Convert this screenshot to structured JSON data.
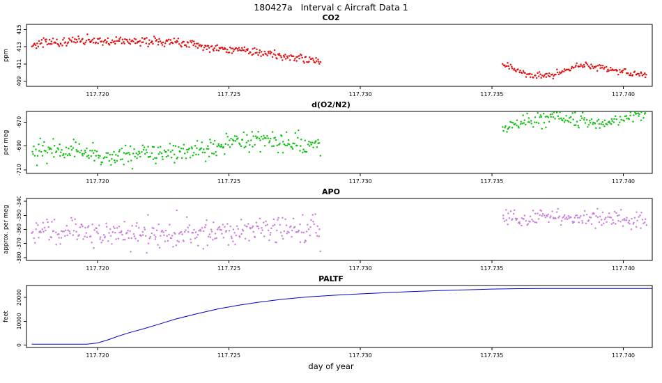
{
  "page": {
    "title": "180427a   Interval c Aircraft Data 1",
    "xlabel": "day of year"
  },
  "chart_data": [
    {
      "type": "scatter",
      "title": "CO2",
      "ylabel": "ppm",
      "color": "#dd0000",
      "xlim": [
        117.7173,
        117.7411
      ],
      "ylim": [
        408.4,
        415.6
      ],
      "xticks": [
        117.72,
        117.725,
        117.73,
        117.735,
        117.74
      ],
      "xtick_labels": [
        "117.720",
        "117.725",
        "117.730",
        "117.735",
        "117.740"
      ],
      "yticks": [
        409,
        411,
        413,
        415
      ],
      "ytick_labels": [
        "409",
        "411",
        "413",
        "415"
      ],
      "segments": [
        {
          "n": 320,
          "noise": 0.25,
          "seed": 101,
          "trend": [
            [
              117.7175,
              413.2
            ],
            [
              117.718,
              413.6
            ],
            [
              117.7185,
              413.5
            ],
            [
              117.719,
              413.7
            ],
            [
              117.7195,
              413.6
            ],
            [
              117.72,
              413.8
            ],
            [
              117.7205,
              413.6
            ],
            [
              117.721,
              413.8
            ],
            [
              117.7215,
              413.6
            ],
            [
              117.722,
              413.7
            ],
            [
              117.7225,
              413.5
            ],
            [
              117.723,
              413.6
            ],
            [
              117.7235,
              413.3
            ],
            [
              117.724,
              413.1
            ],
            [
              117.7245,
              412.9
            ],
            [
              117.725,
              412.7
            ],
            [
              117.7255,
              412.5
            ],
            [
              117.726,
              412.3
            ],
            [
              117.7265,
              412.2
            ],
            [
              117.727,
              412.0
            ],
            [
              117.7275,
              411.8
            ],
            [
              117.728,
              411.5
            ],
            [
              117.7285,
              411.3
            ]
          ]
        },
        {
          "n": 150,
          "noise": 0.2,
          "seed": 202,
          "trend": [
            [
              117.7354,
              411.0
            ],
            [
              117.7358,
              410.5
            ],
            [
              117.7362,
              410.0
            ],
            [
              117.7366,
              409.7
            ],
            [
              117.737,
              409.6
            ],
            [
              117.7374,
              409.8
            ],
            [
              117.7378,
              410.2
            ],
            [
              117.7382,
              410.7
            ],
            [
              117.7386,
              410.9
            ],
            [
              117.739,
              410.7
            ],
            [
              117.7394,
              410.4
            ],
            [
              117.7398,
              410.1
            ],
            [
              117.7402,
              410.0
            ],
            [
              117.7406,
              409.8
            ],
            [
              117.7409,
              409.6
            ]
          ]
        }
      ]
    },
    {
      "type": "scatter",
      "title": "d(O2/N2)",
      "ylabel": "per meg",
      "color": "#00bb00",
      "xlim": [
        117.7173,
        117.7411
      ],
      "ylim": [
        -713,
        -661
      ],
      "xticks": [
        117.72,
        117.725,
        117.73,
        117.735,
        117.74
      ],
      "xtick_labels": [
        "117.720",
        "117.725",
        "117.730",
        "117.735",
        "117.740"
      ],
      "yticks": [
        -710,
        -690,
        -670
      ],
      "ytick_labels": [
        "-710",
        "-690",
        "-670"
      ],
      "segments": [
        {
          "n": 320,
          "noise": 4.5,
          "seed": 303,
          "trend": [
            [
              117.7175,
              -693
            ],
            [
              117.718,
              -695
            ],
            [
              117.7185,
              -694
            ],
            [
              117.719,
              -692
            ],
            [
              117.7195,
              -695
            ],
            [
              117.72,
              -697
            ],
            [
              117.7205,
              -698
            ],
            [
              117.721,
              -699
            ],
            [
              117.7215,
              -698
            ],
            [
              117.722,
              -696
            ],
            [
              117.7225,
              -697
            ],
            [
              117.723,
              -695
            ],
            [
              117.7235,
              -693
            ],
            [
              117.724,
              -692
            ],
            [
              117.7245,
              -690
            ],
            [
              117.725,
              -689
            ],
            [
              117.7255,
              -687
            ],
            [
              117.726,
              -686
            ],
            [
              117.7265,
              -686
            ],
            [
              117.727,
              -687
            ],
            [
              117.7275,
              -686
            ],
            [
              117.728,
              -687
            ],
            [
              117.7285,
              -688
            ]
          ]
        },
        {
          "n": 150,
          "noise": 3,
          "seed": 404,
          "trend": [
            [
              117.7354,
              -675
            ],
            [
              117.7358,
              -672
            ],
            [
              117.7362,
              -670
            ],
            [
              117.7366,
              -668
            ],
            [
              117.737,
              -666
            ],
            [
              117.7374,
              -665
            ],
            [
              117.7378,
              -667
            ],
            [
              117.7382,
              -669
            ],
            [
              117.7386,
              -670
            ],
            [
              117.739,
              -671
            ],
            [
              117.7394,
              -670
            ],
            [
              117.7398,
              -668
            ],
            [
              117.7402,
              -666
            ],
            [
              117.7406,
              -664
            ],
            [
              117.7409,
              -663
            ]
          ]
        }
      ]
    },
    {
      "type": "scatter",
      "title": "APO",
      "ylabel": "approx. per meg",
      "color": "#c678d8",
      "xlim": [
        117.7173,
        117.7411
      ],
      "ylim": [
        -382,
        -338
      ],
      "xticks": [
        117.72,
        117.725,
        117.73,
        117.735,
        117.74
      ],
      "xtick_labels": [
        "117.720",
        "117.725",
        "117.730",
        "117.735",
        "117.740"
      ],
      "yticks": [
        -380,
        -370,
        -360,
        -350,
        -340
      ],
      "ytick_labels": [
        "-380",
        "-370",
        "-360",
        "-350",
        "-340"
      ],
      "segments": [
        {
          "n": 320,
          "noise": 5,
          "seed": 505,
          "trend": [
            [
              117.7175,
              -360
            ],
            [
              117.7185,
              -362
            ],
            [
              117.7195,
              -362
            ],
            [
              117.7205,
              -363
            ],
            [
              117.7215,
              -364
            ],
            [
              117.7225,
              -365
            ],
            [
              117.7235,
              -364
            ],
            [
              117.7245,
              -362
            ],
            [
              117.7255,
              -361
            ],
            [
              117.7265,
              -360
            ],
            [
              117.7275,
              -359
            ],
            [
              117.7285,
              -360
            ]
          ]
        },
        {
          "n": 150,
          "noise": 3.5,
          "seed": 606,
          "trend": [
            [
              117.7354,
              -353
            ],
            [
              117.7362,
              -351
            ],
            [
              117.737,
              -350
            ],
            [
              117.7378,
              -351
            ],
            [
              117.7386,
              -352
            ],
            [
              117.7394,
              -352
            ],
            [
              117.7402,
              -353
            ],
            [
              117.7409,
              -354
            ]
          ]
        }
      ]
    },
    {
      "type": "line",
      "title": "PALTF",
      "ylabel": "feet",
      "color": "#0000cc",
      "xlim": [
        117.7173,
        117.7411
      ],
      "ylim": [
        -1000,
        25000
      ],
      "xticks": [
        117.72,
        117.725,
        117.73,
        117.735,
        117.74
      ],
      "xtick_labels": [
        "117.720",
        "117.725",
        "117.730",
        "117.735",
        "117.740"
      ],
      "yticks": [
        0,
        10000,
        20000
      ],
      "ytick_labels": [
        "0",
        "10000",
        "20000"
      ],
      "points": [
        [
          117.7175,
          400
        ],
        [
          117.7196,
          400
        ],
        [
          117.72,
          900
        ],
        [
          117.7204,
          2200
        ],
        [
          117.7208,
          3800
        ],
        [
          117.7212,
          5200
        ],
        [
          117.7218,
          7000
        ],
        [
          117.7224,
          9000
        ],
        [
          117.723,
          11000
        ],
        [
          117.7238,
          13200
        ],
        [
          117.7246,
          15200
        ],
        [
          117.7254,
          16800
        ],
        [
          117.7262,
          18100
        ],
        [
          117.727,
          19200
        ],
        [
          117.728,
          20200
        ],
        [
          117.729,
          20900
        ],
        [
          117.73,
          21500
        ],
        [
          117.731,
          22000
        ],
        [
          117.732,
          22500
        ],
        [
          117.733,
          22900
        ],
        [
          117.734,
          23200
        ],
        [
          117.735,
          23500
        ],
        [
          117.736,
          23700
        ],
        [
          117.737,
          23750
        ],
        [
          117.7411,
          23750
        ]
      ]
    }
  ]
}
